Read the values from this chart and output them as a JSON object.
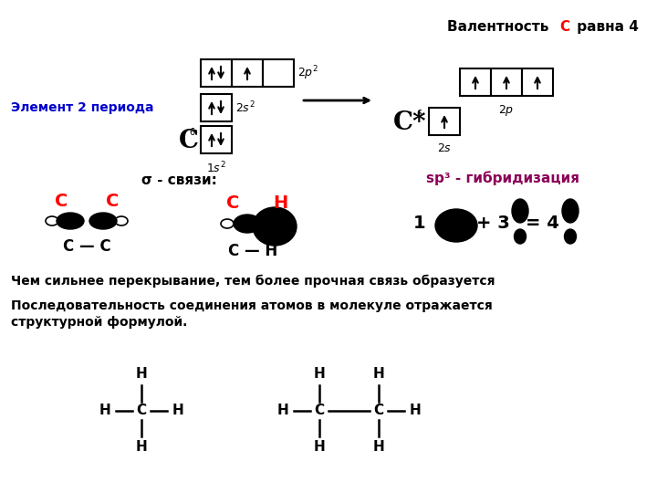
{
  "bg_color": "#ffffff",
  "text_color": "#000000",
  "red_color": "#ff0000",
  "crimson_color": "#8b0000",
  "blue_color": "#0000cd",
  "element_period_label": "Элемент 2 периода",
  "valency_label_pre": "Валентность ",
  "valency_C": "С",
  "valency_label_post": " равна 4",
  "sigma_label": "σ - связи:",
  "sp3_label": "sp³ - гибридизация",
  "text1": "Чем сильнее перекрывание, тем более прочная связь образуется",
  "text2": "Последовательность соединения атомов в молекуле отражается",
  "text3": "структурной формулой."
}
